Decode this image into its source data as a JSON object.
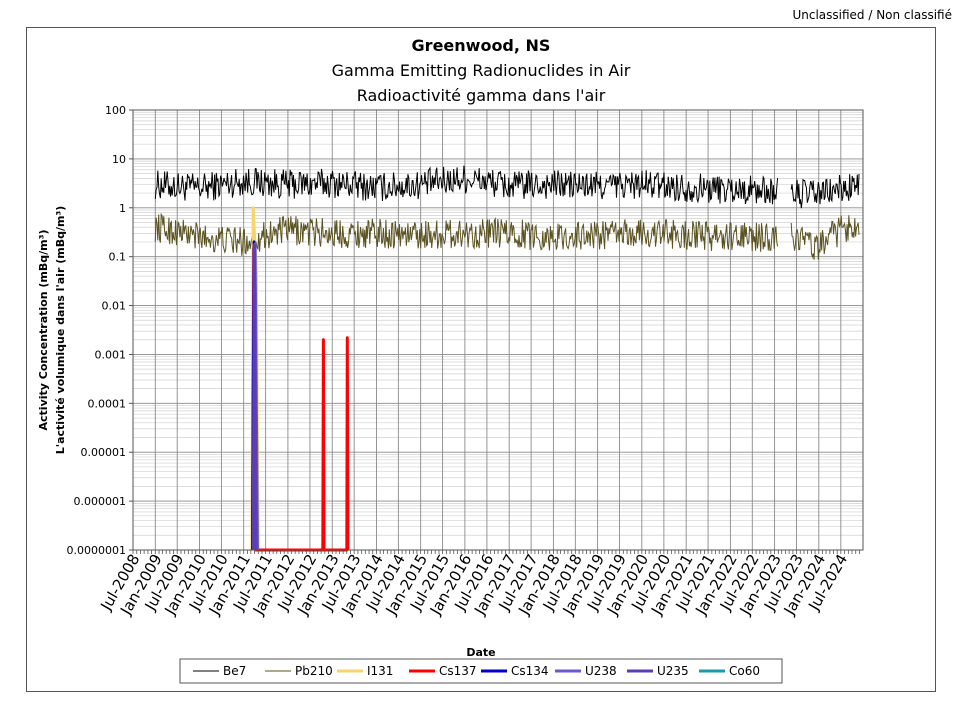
{
  "classification": "Unclassified / Non classifié",
  "chart_data": {
    "type": "line",
    "title": "Greenwood, NS",
    "subtitle": "Gamma Emitting Radionuclides in Air",
    "subtitle_fr": "Radioactivité gamma dans l'air",
    "ylabel": "Activity Concentration  (mBq/m³)",
    "ylabel_fr": "L'activité volumique dans l'air (mBq/m³)",
    "xlabel": "Date",
    "y_scale": "log",
    "ylim": [
      1e-07,
      100
    ],
    "y_ticks": [
      "100",
      "10",
      "1",
      "0.1",
      "0.01",
      "0.001",
      "0.0001",
      "0.00001",
      "0.000001",
      "0.0000001"
    ],
    "x_range": [
      "2008-07-01",
      "2024-12-31"
    ],
    "x_ticks": [
      "Jul-2008",
      "Jan-2009",
      "Jul-2009",
      "Jan-2010",
      "Jul-2010",
      "Jan-2011",
      "Jul-2011",
      "Jan-2012",
      "Jul-2012",
      "Jan-2013",
      "Jul-2013",
      "Jan-2014",
      "Jul-2014",
      "Jan-2015",
      "Jul-2015",
      "Jan-2016",
      "Jul-2016",
      "Jan-2017",
      "Jul-2017",
      "Jan-2018",
      "Jul-2018",
      "Jan-2019",
      "Jul-2019",
      "Jan-2020",
      "Jul-2020",
      "Jan-2021",
      "Jul-2021",
      "Jan-2022",
      "Jul-2022",
      "Jan-2023",
      "Jul-2023",
      "Jan-2024",
      "Jul-2024"
    ],
    "grid": true,
    "legend_position": "bottom",
    "series": [
      {
        "name": "Be7",
        "color": "#000000",
        "typical": 2.8,
        "range": [
          0.8,
          8
        ],
        "points": [
          [
            "2009-01-01",
            3.0
          ],
          [
            "2010-01-01",
            2.5
          ],
          [
            "2011-01-01",
            3.5
          ],
          [
            "2012-01-01",
            3.0
          ],
          [
            "2013-01-01",
            3.2
          ],
          [
            "2014-01-01",
            2.6
          ],
          [
            "2015-01-01",
            3.0
          ],
          [
            "2016-01-01",
            4.0
          ],
          [
            "2017-01-01",
            2.8
          ],
          [
            "2018-01-01",
            3.0
          ],
          [
            "2019-01-01",
            2.8
          ],
          [
            "2020-01-01",
            3.0
          ],
          [
            "2021-01-01",
            2.6
          ],
          [
            "2022-01-01",
            2.4
          ],
          [
            "2023-01-01",
            2.2
          ],
          [
            "2023-04-01",
            2.0
          ],
          [
            "2024-01-01",
            1.9
          ],
          [
            "2024-12-01",
            2.8
          ]
        ],
        "gaps": [
          [
            "2023-02-01",
            "2023-05-15"
          ]
        ]
      },
      {
        "name": "Pb210",
        "color": "#5b5321",
        "typical": 0.3,
        "range": [
          0.05,
          0.85
        ],
        "points": [
          [
            "2009-01-01",
            0.4
          ],
          [
            "2010-01-01",
            0.25
          ],
          [
            "2011-01-01",
            0.2
          ],
          [
            "2012-01-01",
            0.35
          ],
          [
            "2013-01-01",
            0.3
          ],
          [
            "2014-01-01",
            0.3
          ],
          [
            "2015-01-01",
            0.28
          ],
          [
            "2016-01-01",
            0.3
          ],
          [
            "2017-01-01",
            0.3
          ],
          [
            "2018-01-01",
            0.25
          ],
          [
            "2019-01-01",
            0.28
          ],
          [
            "2020-01-01",
            0.3
          ],
          [
            "2021-01-01",
            0.28
          ],
          [
            "2022-01-01",
            0.25
          ],
          [
            "2023-01-01",
            0.25
          ],
          [
            "2023-04-01",
            0.3
          ],
          [
            "2024-01-01",
            0.15
          ],
          [
            "2024-12-01",
            0.5
          ]
        ],
        "gaps": [
          [
            "2023-02-01",
            "2023-05-15"
          ]
        ]
      },
      {
        "name": "I131",
        "color": "#f7d56b",
        "points": [
          [
            "2011-03-10",
            1e-07
          ],
          [
            "2011-03-20",
            1.0
          ],
          [
            "2011-03-30",
            0.3
          ],
          [
            "2011-04-15",
            0.05
          ],
          [
            "2011-05-01",
            1e-07
          ]
        ]
      },
      {
        "name": "Cs137",
        "color": "#ff0000",
        "points": [
          [
            "2011-03-15",
            1e-07
          ],
          [
            "2011-03-25",
            0.15
          ],
          [
            "2011-04-10",
            1e-07
          ],
          [
            "2012-10-15",
            1e-07
          ],
          [
            "2012-10-20",
            0.002
          ],
          [
            "2012-10-25",
            1e-07
          ],
          [
            "2013-05-01",
            1e-07
          ],
          [
            "2013-05-05",
            0.0022
          ],
          [
            "2013-05-10",
            1e-07
          ]
        ]
      },
      {
        "name": "Cs134",
        "color": "#0000c8",
        "points": [
          [
            "2011-03-15",
            1e-07
          ],
          [
            "2011-03-28",
            0.2
          ],
          [
            "2011-04-20",
            1e-07
          ]
        ]
      },
      {
        "name": "U238",
        "color": "#6a5acd",
        "points": [
          [
            "2011-03-25",
            1e-07
          ],
          [
            "2011-04-05",
            0.18
          ],
          [
            "2011-04-25",
            1e-07
          ]
        ]
      },
      {
        "name": "U235",
        "color": "#5a3fb0",
        "points": [
          [
            "2011-03-20",
            1e-07
          ],
          [
            "2011-03-30",
            0.17
          ],
          [
            "2011-04-15",
            1e-07
          ]
        ]
      },
      {
        "name": "Co60",
        "color": "#1a9aaa",
        "points": []
      }
    ]
  }
}
